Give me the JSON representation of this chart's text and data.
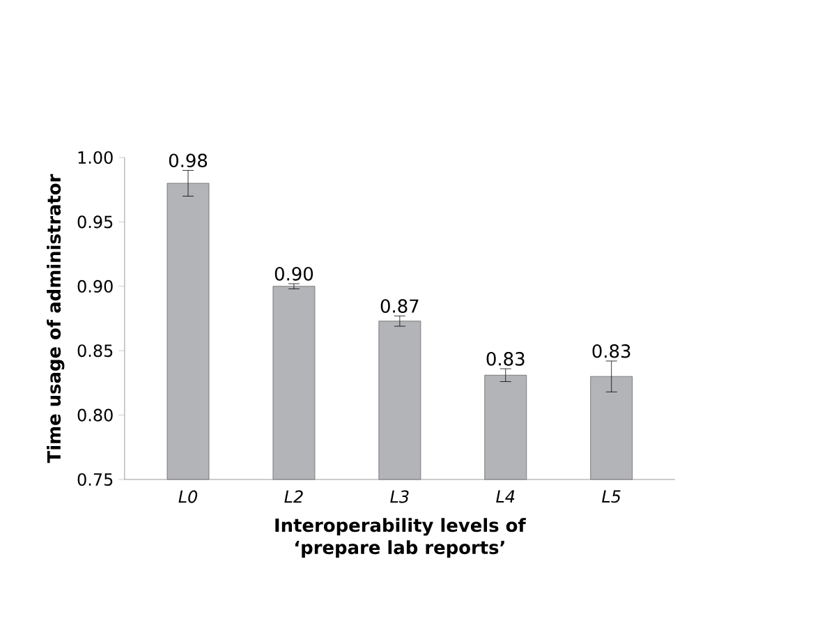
{
  "chart_data": {
    "type": "bar",
    "xlabel": "Interoperability levels of\n‘prepare lab reports’",
    "ylabel": "Time usage of administrator",
    "categories": [
      "*L0*",
      "*L2*",
      "*L3*",
      "*L4*",
      "*L5*"
    ],
    "values": [
      0.98,
      0.9,
      0.873,
      0.831,
      0.83
    ],
    "errors": [
      0.01,
      0.002,
      0.004,
      0.005,
      0.012
    ],
    "value_labels": [
      "0.98",
      "0.90",
      "0.87",
      "0.83",
      "0.83"
    ],
    "color": "#b3b4b8",
    "ylim": [
      0.75,
      1.0
    ],
    "yticks": [
      {
        "value": 0.75,
        "label": "0.75"
      },
      {
        "value": 0.8,
        "label": "0.80"
      },
      {
        "value": 0.85,
        "label": "0.85"
      },
      {
        "value": 0.9,
        "label": "0.90"
      },
      {
        "value": 0.95,
        "label": "0.95"
      },
      {
        "value": 1.0,
        "label": "1.00"
      }
    ],
    "grid": false
  }
}
